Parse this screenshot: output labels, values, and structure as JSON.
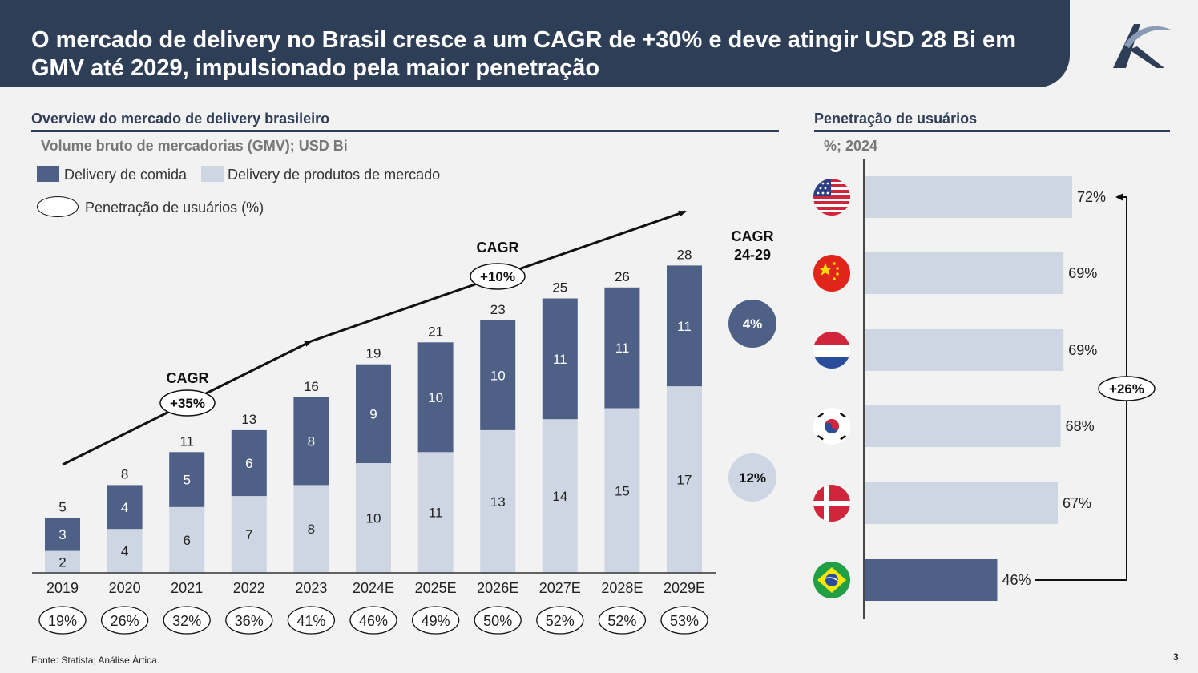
{
  "header": {
    "title": "O mercado de delivery no Brasil cresce a um CAGR de +30% e deve atingir USD 28 Bi em GMV até 2029, impulsionado pela maior penetração"
  },
  "left": {
    "section_title": "Overview do mercado de delivery brasileiro",
    "subtitle": "Volume bruto de mercadorias (GMV); USD Bi",
    "legend": {
      "food": "Delivery de comida",
      "grocery": "Delivery de produtos de mercado",
      "penetration": "Penetração de usuários (%)"
    }
  },
  "right": {
    "section_title": "Penetração de usuários",
    "subtitle": "%; 2024"
  },
  "colors": {
    "dark": "#4f6087",
    "light": "#ced6e4",
    "navy": "#2e3e57"
  },
  "chart_data": [
    {
      "type": "bar",
      "title": "Overview do mercado de delivery brasileiro",
      "ylabel": "Volume bruto de mercadorias (GMV); USD Bi",
      "ylim": [
        0,
        28
      ],
      "categories": [
        "2019",
        "2020",
        "2021",
        "2022",
        "2023",
        "2024E",
        "2025E",
        "2026E",
        "2027E",
        "2028E",
        "2029E"
      ],
      "series": [
        {
          "name": "Delivery de produtos de mercado",
          "values": [
            2,
            4,
            6,
            7,
            8,
            10,
            11,
            13,
            14,
            15,
            17
          ]
        },
        {
          "name": "Delivery de comida",
          "values": [
            3,
            4,
            5,
            6,
            8,
            9,
            10,
            10,
            11,
            11,
            11
          ]
        }
      ],
      "totals": [
        5,
        8,
        11,
        13,
        16,
        19,
        21,
        23,
        25,
        26,
        28
      ],
      "penetration_labels": [
        "19%",
        "26%",
        "32%",
        "36%",
        "41%",
        "46%",
        "49%",
        "50%",
        "52%",
        "52%",
        "53%"
      ],
      "cagr_annotations": [
        {
          "label": "CAGR",
          "value": "+35%"
        },
        {
          "label": "CAGR",
          "value": "+10%"
        }
      ],
      "cagr_24_29": {
        "title_line1": "CAGR",
        "title_line2": "24-29",
        "food": "4%",
        "grocery": "12%"
      }
    },
    {
      "type": "bar",
      "title": "Penetração de usuários",
      "subtitle": "%; 2024",
      "orientation": "horizontal",
      "categories": [
        "EUA",
        "China",
        "Holanda",
        "Coreia do Sul",
        "Dinamarca",
        "Brasil"
      ],
      "values": [
        72,
        69,
        69,
        68,
        67,
        46
      ],
      "labels": [
        "72%",
        "69%",
        "69%",
        "68%",
        "67%",
        "46%"
      ],
      "xlim": [
        0,
        72
      ],
      "difference_annotation": "+26%"
    }
  ],
  "footer": {
    "source": "Fonte: Statista; Análise Ártica.",
    "page": "3"
  }
}
